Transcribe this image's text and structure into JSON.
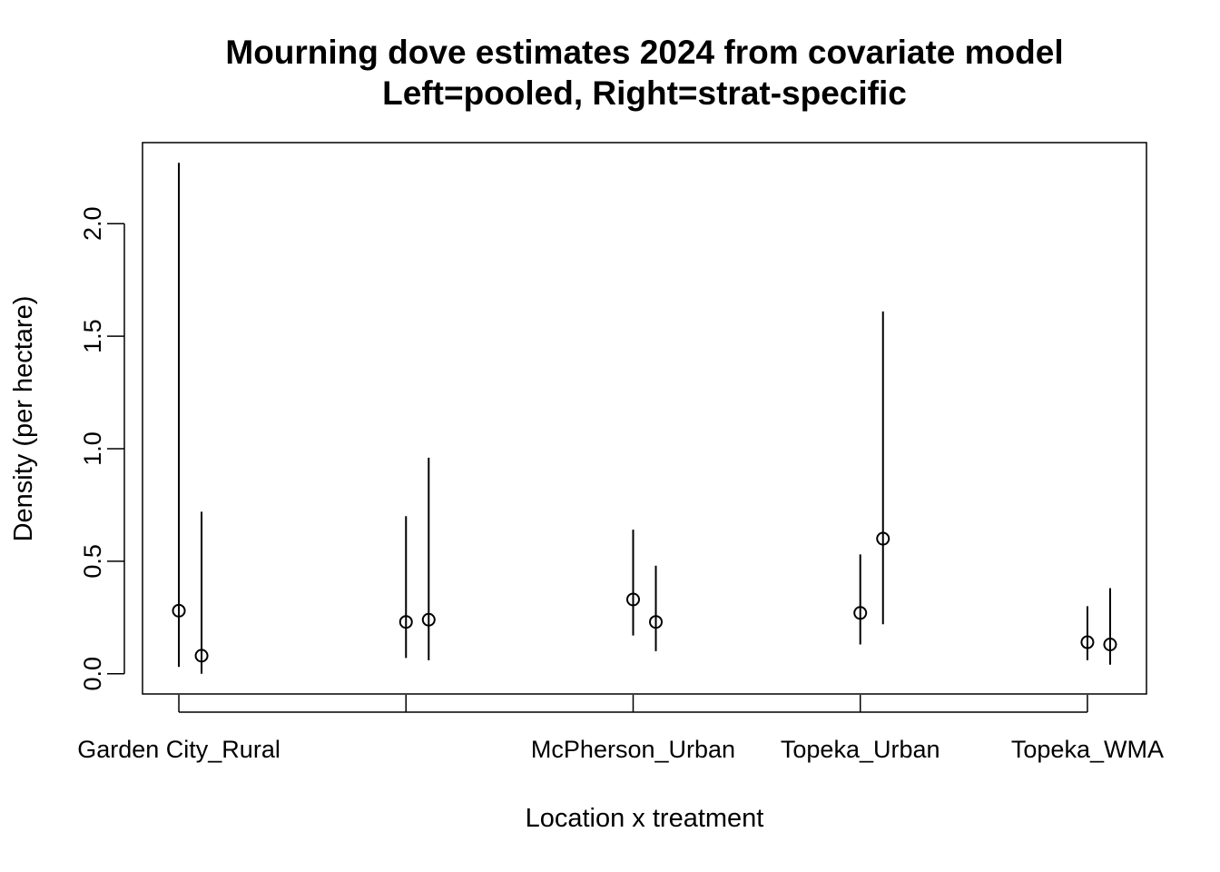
{
  "chart_data": {
    "type": "scatter",
    "title": "Mourning dove estimates 2024 from covariate model",
    "subtitle": "Left=pooled, Right=strat-specific",
    "xlabel": "Location x treatment",
    "ylabel": "Density (per hectare)",
    "categories": [
      "Garden City_Rural",
      "",
      "McPherson_Urban",
      "Topeka_Urban",
      "Topeka_WMA"
    ],
    "category_positions": [
      1,
      2,
      3,
      4,
      5
    ],
    "ylim": [
      -0.09,
      2.36
    ],
    "y_ticks": [
      0.0,
      0.5,
      1.0,
      1.5,
      2.0
    ],
    "y_tick_labels": [
      "0.0",
      "0.5",
      "1.0",
      "1.5",
      "2.0"
    ],
    "grid": false,
    "series": [
      {
        "name": "pooled",
        "x": [
          1.0,
          2.0,
          3.0,
          4.0,
          5.0
        ],
        "estimate": [
          0.28,
          0.23,
          0.33,
          0.27,
          0.14
        ],
        "lower": [
          0.03,
          0.07,
          0.17,
          0.13,
          0.06
        ],
        "upper": [
          2.27,
          0.7,
          0.64,
          0.53,
          0.3
        ]
      },
      {
        "name": "strat-specific",
        "x": [
          1.1,
          2.1,
          3.1,
          4.1,
          5.1
        ],
        "estimate": [
          0.08,
          0.24,
          0.23,
          0.6,
          0.13
        ],
        "lower": [
          0.0,
          0.06,
          0.1,
          0.22,
          0.04
        ],
        "upper": [
          0.72,
          0.96,
          0.48,
          1.61,
          0.38
        ]
      }
    ]
  }
}
